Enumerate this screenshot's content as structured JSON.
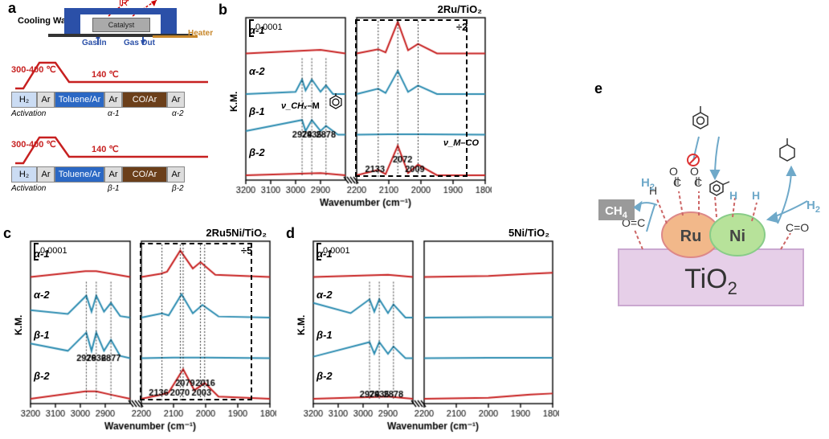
{
  "labels": {
    "a": "a",
    "b": "b",
    "c": "c",
    "d": "d",
    "e": "e"
  },
  "panelA": {
    "ir": "IR",
    "cooling": "Cooling Water",
    "catalyst": "Catalyst",
    "gasIn": "Gas In",
    "gasOut": "Gas Out",
    "heater": "Heater",
    "tempHigh": "300-400 ℃",
    "tempLow": "140 ℃",
    "steps": [
      "H₂",
      "Ar",
      "Toluene/Ar",
      "Ar",
      "CO/Ar",
      "Ar"
    ],
    "annoAct": "Activation",
    "tl1": {
      "a": "α-1",
      "b": "α-2"
    },
    "tl2": {
      "a": "β-1",
      "b": "β-2"
    },
    "tempColor": "#c72020"
  },
  "spectra": {
    "xlabel": "Wavenumber (cm⁻¹)",
    "ylabel": "K.M.",
    "scalebar": "0.0001",
    "xleft": {
      "min": 3200,
      "max": 2800,
      "ticks": [
        3200,
        3100,
        3000,
        2900
      ]
    },
    "xright": {
      "min": 2200,
      "max": 1800,
      "ticks": [
        2200,
        2100,
        2000,
        1900,
        1800
      ]
    },
    "traces": [
      "α-1",
      "α-2",
      "β-1",
      "β-2"
    ],
    "colors": [
      "#c72020",
      "#2a8bb0",
      "#2a8bb0",
      "#c72020"
    ]
  },
  "panelB": {
    "title": "2Ru/TiO₂",
    "divide": "÷2",
    "peaksL": [
      2974,
      2935,
      2878
    ],
    "peaksR": [
      2133,
      2072,
      2009
    ],
    "nuCH": "ν_CHₓ",
    "nuCO": "ν_M–CO",
    "data": [
      {
        "left": [
          [
            3200,
            0
          ],
          [
            2900,
            0.5
          ],
          [
            2800,
            0
          ]
        ],
        "right": [
          [
            2200,
            0
          ],
          [
            2133,
            4
          ],
          [
            2110,
            1
          ],
          [
            2072,
            30
          ],
          [
            2040,
            3
          ],
          [
            2009,
            9
          ],
          [
            1950,
            0
          ],
          [
            1800,
            0
          ]
        ]
      },
      {
        "left": [
          [
            3200,
            0
          ],
          [
            3000,
            0.3
          ],
          [
            2974,
            2
          ],
          [
            2960,
            0.5
          ],
          [
            2935,
            2
          ],
          [
            2900,
            0.3
          ],
          [
            2878,
            1.2
          ],
          [
            2850,
            0
          ],
          [
            2800,
            0
          ]
        ],
        "right": [
          [
            2200,
            0
          ],
          [
            2133,
            5
          ],
          [
            2110,
            1
          ],
          [
            2072,
            22
          ],
          [
            2040,
            2
          ],
          [
            2009,
            8
          ],
          [
            1950,
            0
          ],
          [
            1800,
            0
          ]
        ]
      },
      {
        "left": [
          [
            3200,
            0.5
          ],
          [
            2974,
            2
          ],
          [
            2960,
            0.5
          ],
          [
            2935,
            2
          ],
          [
            2900,
            0.5
          ],
          [
            2878,
            1.2
          ],
          [
            2830,
            0
          ],
          [
            2800,
            0
          ]
        ],
        "right": [
          [
            2200,
            0
          ],
          [
            2100,
            0.3
          ],
          [
            2000,
            0.3
          ],
          [
            1800,
            0
          ]
        ]
      },
      {
        "left": [
          [
            3200,
            0
          ],
          [
            2900,
            0.3
          ],
          [
            2800,
            0
          ]
        ],
        "right": [
          [
            2200,
            0
          ],
          [
            2133,
            5
          ],
          [
            2110,
            1
          ],
          [
            2072,
            28
          ],
          [
            2040,
            2
          ],
          [
            2009,
            10
          ],
          [
            1950,
            0
          ],
          [
            1800,
            0
          ]
        ]
      }
    ]
  },
  "panelC": {
    "title": "2Ru5Ni/TiO₂",
    "divide": "÷5",
    "peaksL": [
      2976,
      2936,
      2877
    ],
    "peaksR": [
      2136,
      2079,
      2070,
      2016,
      2003
    ],
    "data": [
      {
        "left": [
          [
            3200,
            0
          ],
          [
            2980,
            0.8
          ],
          [
            2936,
            0.8
          ],
          [
            2870,
            0.4
          ],
          [
            2800,
            0
          ]
        ],
        "right": [
          [
            2200,
            0
          ],
          [
            2140,
            3
          ],
          [
            2120,
            5
          ],
          [
            2079,
            25
          ],
          [
            2040,
            8
          ],
          [
            2016,
            14
          ],
          [
            1970,
            2
          ],
          [
            1800,
            0
          ]
        ]
      },
      {
        "left": [
          [
            3200,
            1
          ],
          [
            3050,
            0.5
          ],
          [
            2976,
            3
          ],
          [
            2955,
            0.8
          ],
          [
            2936,
            3
          ],
          [
            2905,
            0.8
          ],
          [
            2877,
            2
          ],
          [
            2840,
            0.2
          ],
          [
            2800,
            0
          ]
        ],
        "right": [
          [
            2200,
            0
          ],
          [
            2136,
            4
          ],
          [
            2115,
            2
          ],
          [
            2075,
            22
          ],
          [
            2040,
            4
          ],
          [
            2010,
            12
          ],
          [
            1960,
            1
          ],
          [
            1800,
            0
          ]
        ]
      },
      {
        "left": [
          [
            3200,
            2
          ],
          [
            3050,
            1
          ],
          [
            2976,
            3.5
          ],
          [
            2955,
            1
          ],
          [
            2936,
            3.5
          ],
          [
            2905,
            1
          ],
          [
            2877,
            2.5
          ],
          [
            2840,
            0.3
          ],
          [
            2800,
            0
          ]
        ],
        "right": [
          [
            2200,
            0
          ],
          [
            2100,
            0.5
          ],
          [
            2000,
            0.5
          ],
          [
            1800,
            0
          ]
        ]
      },
      {
        "left": [
          [
            3200,
            0
          ],
          [
            2980,
            1
          ],
          [
            2936,
            1
          ],
          [
            2870,
            0.5
          ],
          [
            2800,
            0
          ]
        ],
        "right": [
          [
            2200,
            0
          ],
          [
            2136,
            4
          ],
          [
            2115,
            6
          ],
          [
            2070,
            28
          ],
          [
            2035,
            8
          ],
          [
            2003,
            15
          ],
          [
            1960,
            2
          ],
          [
            1800,
            0
          ]
        ]
      }
    ]
  },
  "panelD": {
    "title": "5Ni/TiO₂",
    "peaksL": [
      2974,
      2935,
      2878
    ],
    "data": [
      {
        "left": [
          [
            3200,
            0
          ],
          [
            2900,
            0.3
          ],
          [
            2800,
            0
          ]
        ],
        "right": [
          [
            2200,
            0
          ],
          [
            2000,
            1
          ],
          [
            1870,
            3
          ],
          [
            1800,
            4
          ]
        ]
      },
      {
        "left": [
          [
            3200,
            2
          ],
          [
            3050,
            0.6
          ],
          [
            2974,
            2.5
          ],
          [
            2955,
            0.8
          ],
          [
            2935,
            2.5
          ],
          [
            2900,
            0.6
          ],
          [
            2878,
            1.8
          ],
          [
            2830,
            0
          ],
          [
            2800,
            0
          ]
        ],
        "right": [
          [
            2200,
            0
          ],
          [
            2000,
            0.3
          ],
          [
            1800,
            0.3
          ]
        ]
      },
      {
        "left": [
          [
            3200,
            0.2
          ],
          [
            2974,
            2.2
          ],
          [
            2955,
            0.6
          ],
          [
            2935,
            2.2
          ],
          [
            2900,
            0.6
          ],
          [
            2878,
            1.6
          ],
          [
            2830,
            0
          ],
          [
            2800,
            0
          ]
        ],
        "right": [
          [
            2200,
            0
          ],
          [
            2000,
            0.3
          ],
          [
            1800,
            0.3
          ]
        ]
      },
      {
        "left": [
          [
            3200,
            0
          ],
          [
            2900,
            0.3
          ],
          [
            2800,
            0
          ]
        ],
        "right": [
          [
            2200,
            0
          ],
          [
            2000,
            1
          ],
          [
            1870,
            4
          ],
          [
            1800,
            5
          ]
        ]
      }
    ]
  },
  "panelE": {
    "tio2": "TiO₂",
    "ru": "Ru",
    "ni": "Ni",
    "ch4": "CH₄",
    "h2": "H₂",
    "colors": {
      "tio2": "#e6cfe8",
      "ru": "#f2b88a",
      "ni": "#b7e29a",
      "ch4": "#9a9a9a",
      "arrow": "#6fa9c9",
      "bond": "#b55"
    }
  }
}
